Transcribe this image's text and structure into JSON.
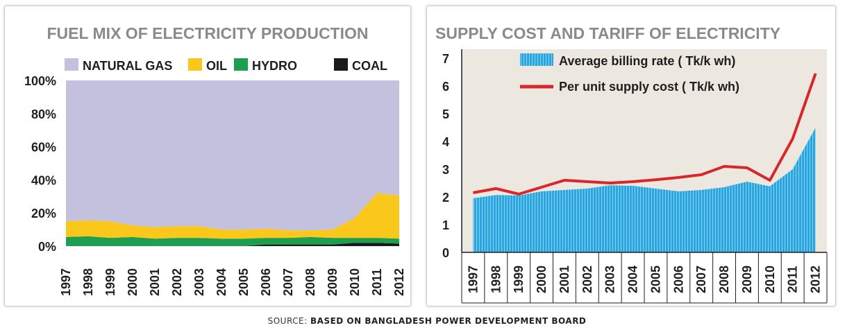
{
  "source": {
    "prefix": "SOURCE:",
    "text": "BASED ON BANGLADESH POWER DEVELOPMENT BOARD"
  },
  "chart_data": [
    {
      "type": "area",
      "stacked": true,
      "title": "FUEL MIX OF ELECTRICITY PRODUCTION",
      "x": [
        "1997",
        "1998",
        "1999",
        "2000",
        "2001",
        "2002",
        "2003",
        "2004",
        "2005",
        "2006",
        "2007",
        "2008",
        "2009",
        "2010",
        "2011",
        "2012"
      ],
      "ylim": [
        0,
        100
      ],
      "yticks": [
        "0%",
        "20%",
        "40%",
        "60%",
        "80%",
        "100%"
      ],
      "legend_position": "top",
      "series": [
        {
          "name": "COAL",
          "color": "#1a1a1a",
          "values": [
            0,
            0,
            0,
            0,
            0,
            0,
            0,
            0,
            0,
            1,
            1,
            1,
            1,
            2,
            2,
            1.5
          ]
        },
        {
          "name": "HYDRO",
          "color": "#1e9e4f",
          "values": [
            5.5,
            6,
            5,
            5.5,
            4.5,
            5,
            5,
            4.5,
            4.5,
            4,
            4,
            4.5,
            4,
            3,
            3,
            3
          ]
        },
        {
          "name": "OIL",
          "color": "#f9c81b",
          "values": [
            9.5,
            9.5,
            10,
            7,
            7,
            7,
            7,
            5.5,
            5.5,
            5.5,
            4.5,
            4,
            5,
            12,
            27,
            26
          ]
        },
        {
          "name": "NATURAL GAS",
          "color": "#c4c1df",
          "values": [
            85,
            84.5,
            85,
            87.5,
            88.5,
            88,
            88,
            90,
            90,
            89.5,
            90.5,
            90.5,
            90,
            83,
            68,
            69.5
          ]
        }
      ],
      "legend_order": [
        "NATURAL GAS",
        "OIL",
        "HYDRO",
        "COAL"
      ]
    },
    {
      "type": "bar+line",
      "title": "SUPPLY COST AND TARIFF OF ELECTRICITY",
      "x": [
        "1997",
        "1998",
        "1999",
        "2000",
        "2001",
        "2002",
        "2003",
        "2004",
        "2005",
        "2006",
        "2007",
        "2008",
        "2009",
        "2010",
        "2011",
        "2012"
      ],
      "ylim": [
        0,
        7
      ],
      "yticks": [
        "0",
        "1",
        "2",
        "3",
        "4",
        "5",
        "6",
        "7"
      ],
      "legend_position": "top",
      "series": [
        {
          "name": "Average billing rate ( Tk/k wh)",
          "kind": "area",
          "color": "#29a6df",
          "values": [
            1.95,
            2.07,
            2.05,
            2.2,
            2.25,
            2.3,
            2.42,
            2.4,
            2.3,
            2.2,
            2.25,
            2.35,
            2.55,
            2.38,
            3.0,
            4.5
          ]
        },
        {
          "name": "Per unit supply cost ( Tk/k wh)",
          "kind": "line",
          "color": "#d8262c",
          "values": [
            2.15,
            2.3,
            2.1,
            2.35,
            2.6,
            2.55,
            2.5,
            2.55,
            2.62,
            2.7,
            2.8,
            3.1,
            3.05,
            2.6,
            4.1,
            6.45
          ]
        }
      ],
      "background": "#ece7df"
    }
  ]
}
